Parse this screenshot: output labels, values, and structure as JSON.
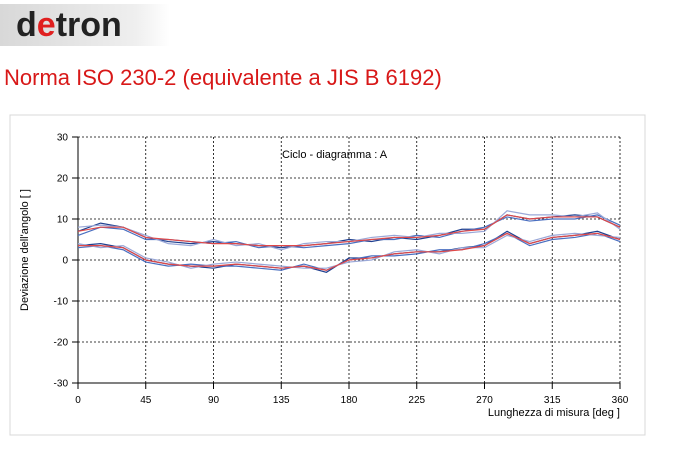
{
  "logo": [
    "d",
    "e",
    "tron"
  ],
  "heading": "Norma ISO 230-2 (equivalente a JIS B 6192)",
  "chart_data": {
    "type": "line",
    "annotation": "Ciclo - diagramma :  A",
    "xlabel": "Lunghezza di misura [deg ]",
    "ylabel": "Deviazione dell'angolo [ ]",
    "x": [
      0,
      15,
      30,
      45,
      60,
      75,
      90,
      105,
      120,
      135,
      150,
      165,
      180,
      195,
      210,
      225,
      240,
      255,
      270,
      285,
      300,
      315,
      330,
      345,
      360
    ],
    "xlim": [
      0,
      360
    ],
    "xticks": [
      0,
      45,
      90,
      135,
      180,
      225,
      270,
      315,
      360
    ],
    "ylim": [
      -30,
      30
    ],
    "yticks": [
      -30,
      -20,
      -10,
      0,
      10,
      20,
      30
    ],
    "grid": true,
    "series": [
      {
        "color": "#1f3f8f",
        "values": [
          7,
          9,
          8,
          5.5,
          4.5,
          4,
          4.5,
          4,
          3.5,
          3,
          3.5,
          4,
          5,
          4.5,
          5.5,
          5,
          6,
          7.5,
          7.5,
          11,
          10,
          10.5,
          11,
          10.5,
          8
        ]
      },
      {
        "color": "#4a6fc0",
        "values": [
          6,
          8,
          7.5,
          5,
          5,
          4.5,
          4,
          4.5,
          3,
          3.5,
          3,
          3.5,
          4,
          5,
          5,
          6,
          5.5,
          7,
          8,
          10.5,
          9.5,
          10,
          10,
          11,
          8.5
        ]
      },
      {
        "color": "#9aa8d8",
        "values": [
          8,
          8.5,
          8,
          6,
          4,
          3.5,
          5,
          3.5,
          4,
          2.5,
          4,
          4.5,
          4.5,
          5.5,
          6,
          5.5,
          6.5,
          6.5,
          7,
          12,
          11,
          11,
          10.5,
          11.5,
          7.5
        ]
      },
      {
        "color": "#e04848",
        "values": [
          7,
          8,
          8,
          5.5,
          5,
          4.5,
          4,
          4,
          3.5,
          3.5,
          3.5,
          4,
          4.5,
          5,
          5.5,
          5.5,
          6,
          7,
          7.5,
          11,
          10,
          10.5,
          10.5,
          10.5,
          8
        ]
      },
      {
        "color": "#1f3f8f",
        "values": [
          3.5,
          4,
          3,
          0,
          -1,
          -1.5,
          -2,
          -1,
          -1.5,
          -2,
          -1.5,
          -3,
          0.5,
          0.5,
          1.5,
          2,
          2,
          3,
          3.5,
          7,
          4,
          5.5,
          6,
          7,
          5
        ]
      },
      {
        "color": "#4a6fc0",
        "values": [
          3,
          3.5,
          2.5,
          -0.5,
          -1.5,
          -1,
          -1.5,
          -1.5,
          -2,
          -2.5,
          -1,
          -2.5,
          0,
          1,
          1,
          1.5,
          2.5,
          2.5,
          4,
          6.5,
          3.5,
          5,
          5.5,
          6.5,
          4.5
        ]
      },
      {
        "color": "#9aa8d8",
        "values": [
          4,
          3,
          3.5,
          0.5,
          -0.5,
          -2,
          -1,
          -0.5,
          -1,
          -1.5,
          -2,
          -2,
          -0.5,
          0,
          2,
          2.5,
          1.5,
          3,
          3,
          6,
          4.5,
          6,
          6.5,
          6,
          5.5
        ]
      },
      {
        "color": "#e04848",
        "values": [
          3.5,
          3.5,
          3,
          0,
          -1,
          -1.5,
          -1.5,
          -1,
          -1.5,
          -2,
          -1.5,
          -2.5,
          0,
          0.5,
          1.5,
          2,
          2,
          2.5,
          3.5,
          6.5,
          4,
          5.5,
          6,
          6.5,
          5
        ]
      }
    ]
  }
}
